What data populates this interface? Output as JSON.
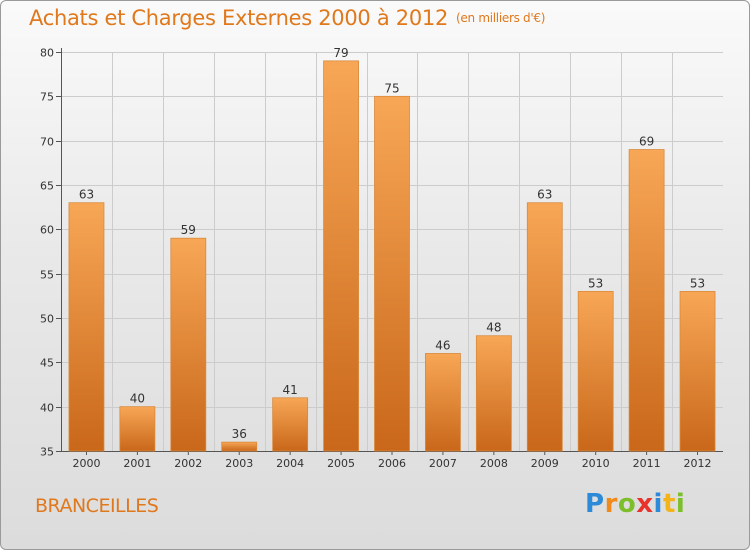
{
  "title": "Achats et Charges Externes 2000 à 2012",
  "subtitle": "(en milliers d'€)",
  "place": "BRANCEILLES",
  "logo": {
    "text": "Proxiti",
    "letters": [
      {
        "ch": "P",
        "color": "#2c8ad8"
      },
      {
        "ch": "r",
        "color": "#f08a1a"
      },
      {
        "ch": "o",
        "color": "#7cbf2a"
      },
      {
        "ch": "x",
        "color": "#e8322a"
      },
      {
        "ch": "i",
        "color": "#2c8ad8"
      },
      {
        "ch": "t",
        "color": "#f2b418"
      },
      {
        "ch": "i",
        "color": "#7cbf2a"
      }
    ]
  },
  "colors": {
    "accent": "#e0781c",
    "bar_top": "#f7a756",
    "bar_bottom": "#c9671a",
    "grid": "#cccccc"
  },
  "chart_data": {
    "type": "bar",
    "title": "Achats et Charges Externes 2000 à 2012",
    "subtitle": "(en milliers d'€)",
    "xlabel": "",
    "ylabel": "",
    "categories": [
      "2000",
      "2001",
      "2002",
      "2003",
      "2004",
      "2005",
      "2006",
      "2007",
      "2008",
      "2009",
      "2010",
      "2011",
      "2012"
    ],
    "values": [
      63,
      40,
      59,
      36,
      41,
      79,
      75,
      46,
      48,
      63,
      53,
      69,
      53
    ],
    "ylim": [
      35,
      80
    ],
    "yticks": [
      35,
      40,
      45,
      50,
      55,
      60,
      65,
      70,
      75,
      80
    ],
    "grid": true,
    "legend": "none"
  }
}
